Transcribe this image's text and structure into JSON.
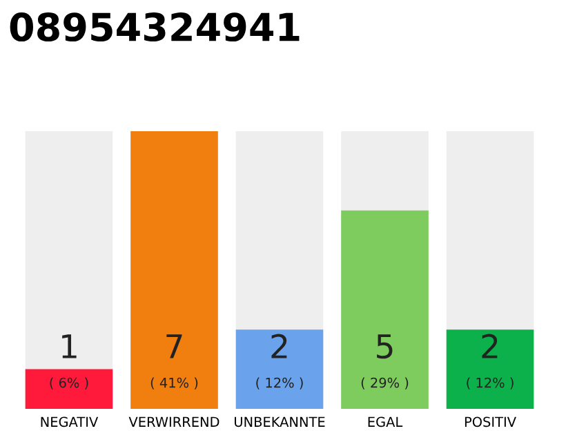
{
  "chart_data": {
    "type": "bar",
    "title": "08954324941",
    "categories": [
      "NEGATIV",
      "VERWIRREND",
      "UNBEKANNTE",
      "EGAL",
      "POSITIV"
    ],
    "values": [
      1,
      7,
      2,
      5,
      2
    ],
    "colors": [
      "#ff1a3c",
      "#f07f10",
      "#6aa3ec",
      "#7ecb5e",
      "#0db14b"
    ],
    "value_labels": [
      "1\n( 6% )",
      "7\n( 41% )",
      "2\n( 12% )",
      "5\n( 29% )",
      "2\n( 12% )"
    ],
    "ylim": [
      0,
      7
    ],
    "tick_labels": "x",
    "grid": false,
    "legend": false
  }
}
